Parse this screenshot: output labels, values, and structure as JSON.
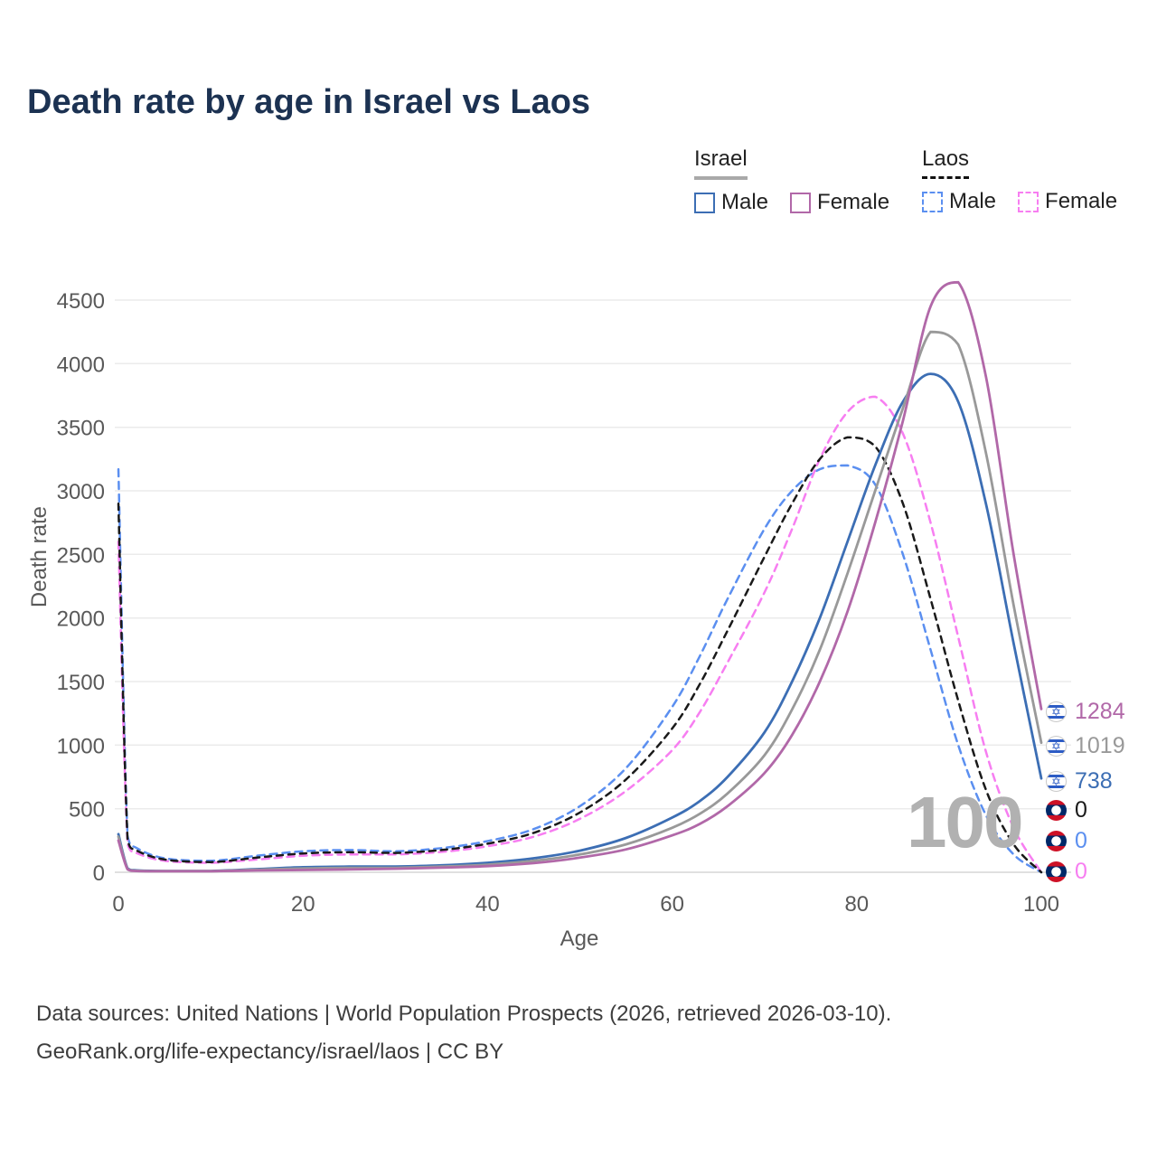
{
  "title": "Death rate by age in Israel vs Laos",
  "legend": {
    "israel": {
      "label": "Israel",
      "male": "Male",
      "female": "Female"
    },
    "laos": {
      "label": "Laos",
      "male": "Male",
      "female": "Female"
    }
  },
  "colors": {
    "israel_male": "#3c6eb4",
    "israel_female": "#b168a8",
    "israel_combined": "#999999",
    "laos_male": "#5b8ff0",
    "laos_female": "#f77ef1",
    "laos_combined": "#1a1a1a",
    "title_text": "#1c3252",
    "axis_text": "#595959",
    "gridline": "#ebebeb",
    "watermark": "#b1b1b1"
  },
  "age_indicator": "100",
  "chart_data": {
    "type": "line",
    "title": "Death rate by age in Israel vs Laos",
    "xlabel": "Age",
    "ylabel": "Death rate",
    "xlim": [
      0,
      100
    ],
    "ylim": [
      0,
      4500
    ],
    "xticks": [
      0,
      20,
      40,
      60,
      80,
      100
    ],
    "yticks": [
      0,
      500,
      1000,
      1500,
      2000,
      2500,
      3000,
      3500,
      4000,
      4500
    ],
    "grid": "horizontal",
    "legend_position": "top-right",
    "x": [
      0,
      1,
      2,
      5,
      10,
      15,
      20,
      25,
      30,
      35,
      40,
      45,
      50,
      55,
      60,
      63,
      66,
      70,
      73,
      76,
      79,
      82,
      85,
      88,
      91,
      94,
      97,
      100
    ],
    "series": [
      {
        "name": "Laos Male",
        "country": "laos",
        "sex": "male",
        "style": "dashed",
        "color": "#5b8ff0",
        "dash": "8 6",
        "width": 2.5,
        "values": [
          3170,
          280,
          190,
          110,
          90,
          130,
          165,
          175,
          165,
          190,
          245,
          340,
          520,
          820,
          1300,
          1700,
          2150,
          2700,
          3000,
          3170,
          3200,
          3050,
          2500,
          1750,
          1000,
          450,
          140,
          0
        ]
      },
      {
        "name": "Laos Female",
        "country": "laos",
        "sex": "female",
        "style": "dashed",
        "color": "#f77ef1",
        "dash": "8 6",
        "width": 2.5,
        "values": [
          2600,
          220,
          150,
          90,
          75,
          100,
          130,
          140,
          140,
          160,
          205,
          280,
          420,
          640,
          960,
          1260,
          1650,
          2200,
          2700,
          3250,
          3620,
          3740,
          3450,
          2750,
          1850,
          950,
          350,
          0
        ]
      },
      {
        "name": "Laos Combined",
        "country": "laos",
        "sex": "both",
        "style": "dashed",
        "color": "#1a1a1a",
        "dash": "7 6",
        "width": 2.5,
        "values": [
          2900,
          250,
          170,
          100,
          80,
          115,
          148,
          158,
          152,
          175,
          225,
          310,
          470,
          730,
          1130,
          1480,
          1900,
          2480,
          2900,
          3250,
          3420,
          3350,
          2900,
          2150,
          1350,
          650,
          220,
          0
        ]
      },
      {
        "name": "Israel Male",
        "country": "israel",
        "sex": "male",
        "style": "solid",
        "color": "#3c6eb4",
        "dash": null,
        "width": 2.8,
        "values": [
          300,
          30,
          15,
          10,
          10,
          25,
          40,
          45,
          45,
          55,
          75,
          110,
          170,
          270,
          430,
          560,
          750,
          1100,
          1500,
          2000,
          2600,
          3200,
          3700,
          3920,
          3700,
          2900,
          1800,
          738
        ]
      },
      {
        "name": "Israel Combined",
        "country": "israel",
        "sex": "both",
        "style": "solid",
        "color": "#999999",
        "dash": null,
        "width": 2.8,
        "values": [
          280,
          25,
          12,
          9,
          9,
          20,
          30,
          35,
          35,
          45,
          60,
          90,
          140,
          220,
          350,
          460,
          620,
          920,
          1280,
          1750,
          2350,
          3000,
          3650,
          4250,
          4150,
          3300,
          2100,
          1019
        ]
      },
      {
        "name": "Israel Female",
        "country": "israel",
        "sex": "female",
        "style": "solid",
        "color": "#b168a8",
        "dash": null,
        "width": 2.8,
        "values": [
          250,
          22,
          10,
          8,
          8,
          14,
          18,
          22,
          28,
          36,
          48,
          72,
          115,
          180,
          290,
          380,
          520,
          780,
          1080,
          1500,
          2050,
          2750,
          3550,
          4450,
          4640,
          3900,
          2500,
          1284
        ]
      }
    ]
  },
  "end_labels": [
    {
      "value": "1284",
      "flag": "israel",
      "color": "#b168a8"
    },
    {
      "value": "1019",
      "flag": "israel",
      "color": "#999999"
    },
    {
      "value": "738",
      "flag": "israel",
      "color": "#3c6eb4"
    },
    {
      "value": "0",
      "flag": "laos",
      "color": "#1a1a1a"
    },
    {
      "value": "0",
      "flag": "laos",
      "color": "#5b8ff0"
    },
    {
      "value": "0",
      "flag": "laos",
      "color": "#f77ef1"
    }
  ],
  "footer": {
    "line1": "Data sources: United Nations | World Population Prospects (2026, retrieved 2026-03-10).",
    "line2": "GeoRank.org/life-expectancy/israel/laos | CC BY"
  }
}
